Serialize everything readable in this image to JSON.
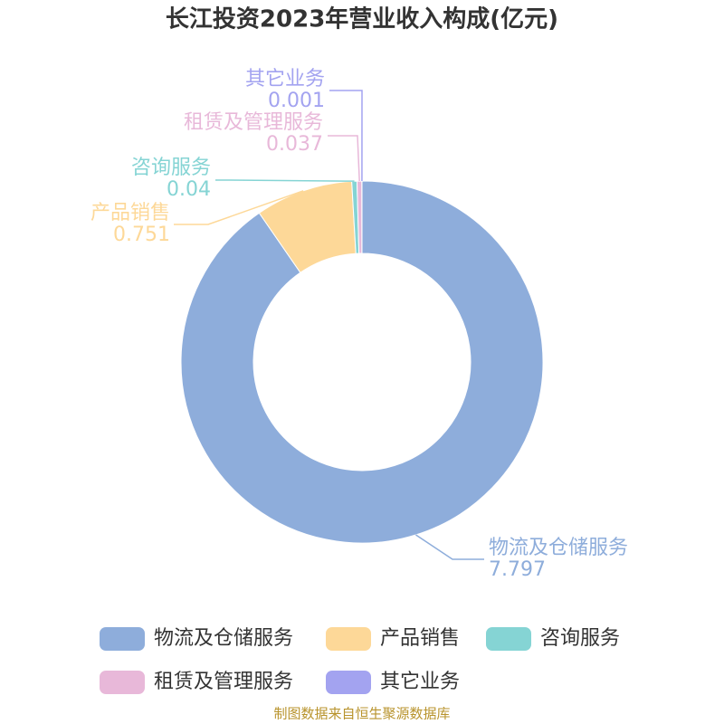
{
  "chart_data": {
    "type": "donut",
    "title": "长江投资2023年营业收入构成(亿元)",
    "categories": [
      "物流及仓储服务",
      "产品销售",
      "咨询服务",
      "租赁及管理服务",
      "其它业务"
    ],
    "values": [
      7.797,
      0.751,
      0.04,
      0.037,
      0.001
    ],
    "colors": [
      "#8eaddb",
      "#fdd898",
      "#85d4d4",
      "#e8b8d9",
      "#a3a3f0"
    ],
    "source": "制图数据来自恒生聚源数据库"
  }
}
